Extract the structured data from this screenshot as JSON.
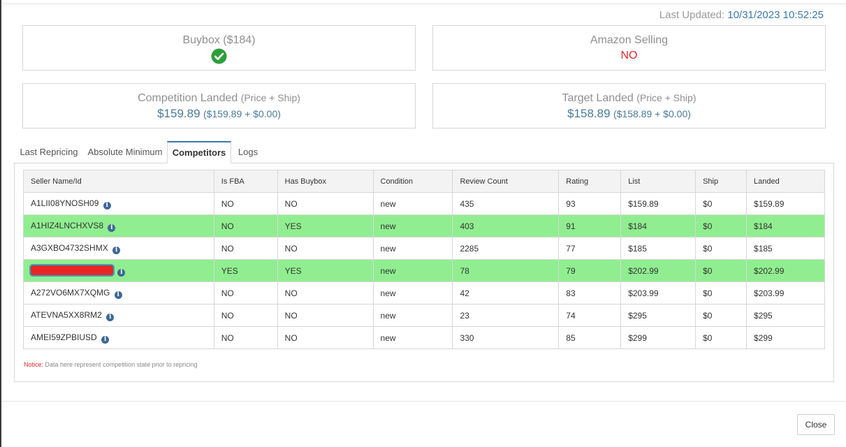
{
  "header": {
    "last_updated_label": "Last Updated:",
    "last_updated_value": "10/31/2023 10:52:25"
  },
  "cards": {
    "buybox": {
      "title": "Buybox ($184)",
      "status_icon": "check-circle-icon"
    },
    "amazon_selling": {
      "title": "Amazon Selling",
      "value": "NO"
    },
    "competition_landed": {
      "title": "Competition Landed",
      "subtitle": "(Price + Ship)",
      "price": "$159.89",
      "breakdown": "($159.89 + $0.00)"
    },
    "target_landed": {
      "title": "Target Landed",
      "subtitle": "(Price + Ship)",
      "price": "$158.89",
      "breakdown": "($158.89 + $0.00)"
    }
  },
  "tabs": [
    {
      "label": "Last Repricing"
    },
    {
      "label": "Absolute Minimum"
    },
    {
      "label": "Competitors",
      "active": true
    },
    {
      "label": "Logs"
    }
  ],
  "table": {
    "headers": [
      "Seller Name/Id",
      "Is FBA",
      "Has Buybox",
      "Condition",
      "Review Count",
      "Rating",
      "List",
      "Ship",
      "Landed"
    ],
    "rows": [
      {
        "seller": "A1LII08YNOSH09",
        "fba": "NO",
        "buybox": "NO",
        "condition": "new",
        "reviews": "435",
        "rating": "93",
        "list": "$159.89",
        "ship": "$0",
        "landed": "$159.89",
        "highlight": false
      },
      {
        "seller": "A1HIZ4LNCHXVS8",
        "fba": "NO",
        "buybox": "YES",
        "condition": "new",
        "reviews": "403",
        "rating": "91",
        "list": "$184",
        "ship": "$0",
        "landed": "$184",
        "highlight": true
      },
      {
        "seller": "A3GXBO4732SHMX",
        "fba": "NO",
        "buybox": "NO",
        "condition": "new",
        "reviews": "2285",
        "rating": "77",
        "list": "$185",
        "ship": "$0",
        "landed": "$185",
        "highlight": false
      },
      {
        "seller": "",
        "redacted": true,
        "fba": "YES",
        "buybox": "YES",
        "condition": "new",
        "reviews": "78",
        "rating": "79",
        "list": "$202.99",
        "ship": "$0",
        "landed": "$202.99",
        "highlight": true
      },
      {
        "seller": "A272VO6MX7XQMG",
        "fba": "NO",
        "buybox": "NO",
        "condition": "new",
        "reviews": "42",
        "rating": "83",
        "list": "$203.99",
        "ship": "$0",
        "landed": "$203.99",
        "highlight": false
      },
      {
        "seller": "ATEVNA5XX8RM2",
        "fba": "NO",
        "buybox": "NO",
        "condition": "new",
        "reviews": "23",
        "rating": "74",
        "list": "$295",
        "ship": "$0",
        "landed": "$295",
        "highlight": false
      },
      {
        "seller": "AMEI59ZPBIUSD",
        "fba": "NO",
        "buybox": "NO",
        "condition": "new",
        "reviews": "330",
        "rating": "85",
        "list": "$299",
        "ship": "$0",
        "landed": "$299",
        "highlight": false
      }
    ]
  },
  "notice": {
    "label": "Notice:",
    "text": " Data here represent competition state prior to repricing"
  },
  "footer": {
    "close_label": "Close"
  },
  "colors": {
    "highlight_row": "#90ee90",
    "accent": "#3a79ad",
    "alert": "#e0262e",
    "check": "#2e9e3a"
  }
}
